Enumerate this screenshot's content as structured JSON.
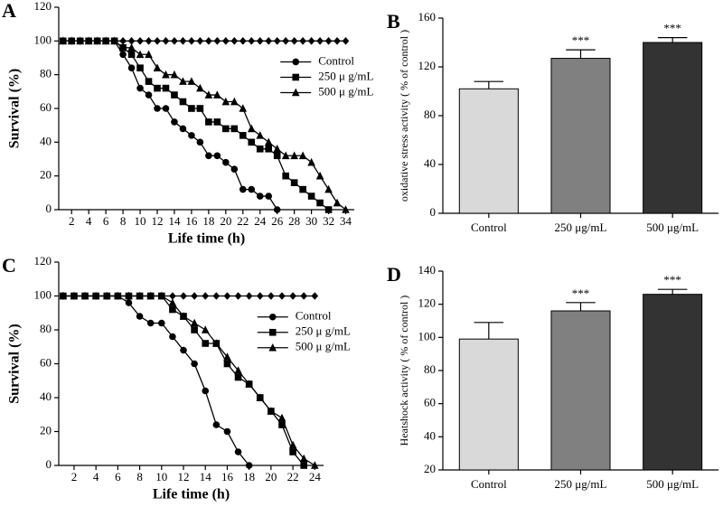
{
  "chart_data": [
    {
      "type": "line",
      "panel": "A",
      "xlabel": "Life time (h)",
      "ylabel": "Survival (%)",
      "xlim": [
        0.5,
        35
      ],
      "ylim": [
        0,
        120
      ],
      "xticks": [
        2,
        4,
        6,
        8,
        10,
        12,
        14,
        16,
        18,
        20,
        22,
        24,
        26,
        28,
        30,
        32,
        34
      ],
      "yticks": [
        0,
        20,
        40,
        60,
        80,
        100,
        120
      ],
      "legend": "center right",
      "x": [
        1,
        2,
        3,
        4,
        5,
        6,
        7,
        8,
        9,
        10,
        11,
        12,
        13,
        14,
        15,
        16,
        17,
        18,
        19,
        20,
        21,
        22,
        23,
        24,
        25,
        26,
        27,
        28,
        29,
        30,
        31,
        32,
        33,
        34
      ],
      "series": [
        {
          "marker": "diamond",
          "color": "#000000",
          "values": [
            100,
            100,
            100,
            100,
            100,
            100,
            100,
            100,
            100,
            100,
            100,
            100,
            100,
            100,
            100,
            100,
            100,
            100,
            100,
            100,
            100,
            100,
            100,
            100,
            100,
            100,
            100,
            100,
            100,
            100,
            100,
            100,
            100,
            100
          ]
        },
        {
          "name": "Control",
          "marker": "circle",
          "color": "#000000",
          "values": [
            100,
            100,
            100,
            100,
            100,
            100,
            100,
            92,
            84,
            72,
            68,
            60,
            60,
            52,
            48,
            44,
            40,
            32,
            32,
            28,
            24,
            12,
            12,
            8,
            8,
            0,
            null,
            null,
            null,
            null,
            null,
            null,
            null,
            null
          ]
        },
        {
          "name": "250 μ g/mL",
          "marker": "square",
          "color": "#000000",
          "values": [
            100,
            100,
            100,
            100,
            100,
            100,
            100,
            96,
            92,
            84,
            76,
            72,
            72,
            68,
            64,
            60,
            60,
            52,
            52,
            48,
            48,
            44,
            40,
            36,
            36,
            32,
            20,
            16,
            12,
            8,
            4,
            0,
            null,
            null
          ]
        },
        {
          "name": "500 μ g/mL",
          "marker": "triangle",
          "color": "#000000",
          "values": [
            100,
            100,
            100,
            100,
            100,
            100,
            100,
            96,
            96,
            92,
            92,
            84,
            80,
            80,
            76,
            76,
            72,
            68,
            68,
            64,
            64,
            60,
            48,
            44,
            40,
            36,
            32,
            32,
            32,
            28,
            20,
            12,
            4,
            0
          ]
        }
      ]
    },
    {
      "type": "bar",
      "panel": "B",
      "ylabel": "oxidative stress activity ( % of control )",
      "ylim": [
        0,
        160
      ],
      "yticks": [
        0,
        40,
        80,
        120,
        160
      ],
      "categories": [
        "Control",
        "250 μg/mL",
        "500 μg/mL"
      ],
      "values": [
        102,
        127,
        140
      ],
      "errors": [
        6,
        7,
        4
      ],
      "colors": [
        "#d9d9d9",
        "#808080",
        "#333333"
      ],
      "significance": [
        null,
        "***",
        "***"
      ]
    },
    {
      "type": "line",
      "panel": "C",
      "xlabel": "Life time (h)",
      "ylabel": "Survival (%)",
      "xlim": [
        0.6,
        24.8
      ],
      "ylim": [
        0,
        120
      ],
      "xticks": [
        2,
        4,
        6,
        8,
        10,
        12,
        14,
        16,
        18,
        20,
        22,
        24
      ],
      "yticks": [
        0,
        20,
        40,
        60,
        80,
        100,
        120
      ],
      "legend": "center right",
      "x": [
        1,
        2,
        3,
        4,
        5,
        6,
        7,
        8,
        9,
        10,
        11,
        12,
        13,
        14,
        15,
        16,
        17,
        18,
        19,
        20,
        21,
        22,
        23,
        24
      ],
      "series": [
        {
          "marker": "diamond",
          "color": "#000000",
          "values": [
            100,
            100,
            100,
            100,
            100,
            100,
            100,
            100,
            100,
            100,
            100,
            100,
            100,
            100,
            100,
            100,
            100,
            100,
            100,
            100,
            100,
            100,
            100,
            100
          ]
        },
        {
          "name": "Control",
          "marker": "circle",
          "color": "#000000",
          "values": [
            100,
            100,
            100,
            100,
            100,
            100,
            96,
            88,
            84,
            84,
            76,
            68,
            60,
            44,
            24,
            20,
            8,
            0,
            null,
            null,
            null,
            null,
            null,
            null
          ]
        },
        {
          "name": "250 μ g/mL",
          "marker": "square",
          "color": "#000000",
          "values": [
            100,
            100,
            100,
            100,
            100,
            100,
            100,
            100,
            100,
            100,
            92,
            88,
            80,
            72,
            72,
            60,
            52,
            48,
            40,
            32,
            24,
            8,
            0,
            null
          ]
        },
        {
          "name": "500 μ g/mL",
          "marker": "triangle",
          "color": "#000000",
          "values": [
            100,
            100,
            100,
            100,
            100,
            100,
            100,
            100,
            100,
            100,
            96,
            88,
            84,
            80,
            72,
            64,
            56,
            48,
            40,
            32,
            28,
            12,
            4,
            0
          ]
        }
      ]
    },
    {
      "type": "bar",
      "panel": "D",
      "ylabel": "Heatshock activity ( % of control )",
      "ylim": [
        20,
        140
      ],
      "yticks": [
        20,
        40,
        60,
        80,
        100,
        120,
        140
      ],
      "categories": [
        "Control",
        "250 μg/mL",
        "500 μg/mL"
      ],
      "values": [
        99,
        116,
        126
      ],
      "errors": [
        10,
        5,
        3
      ],
      "colors": [
        "#d9d9d9",
        "#808080",
        "#333333"
      ],
      "significance": [
        null,
        "***",
        "***"
      ]
    }
  ]
}
